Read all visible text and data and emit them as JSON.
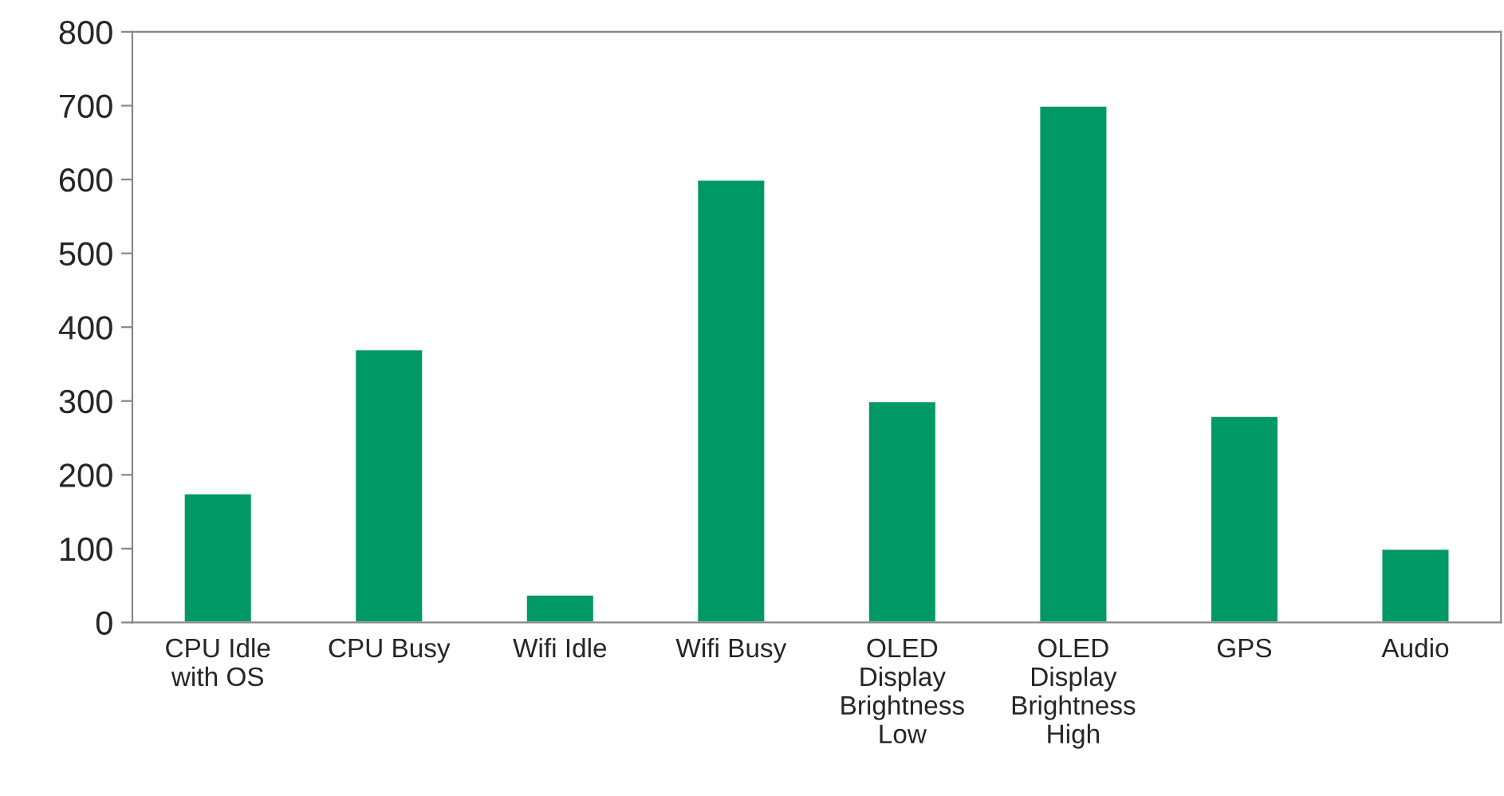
{
  "chart_data": {
    "type": "bar",
    "categories": [
      "CPU Idle\nwith OS",
      "CPU Busy",
      "Wifi Idle",
      "Wifi Busy",
      "OLED\nDisplay\nBrightness\nLow",
      "OLED\nDisplay\nBrightness\nHigh",
      "GPS",
      "Audio"
    ],
    "values": [
      175,
      370,
      38,
      600,
      300,
      700,
      280,
      100
    ],
    "color": "#009966",
    "ylim": [
      0,
      800
    ],
    "yticks": [
      0,
      100,
      200,
      300,
      400,
      500,
      600,
      700,
      800
    ],
    "grid": false,
    "legend": false
  }
}
